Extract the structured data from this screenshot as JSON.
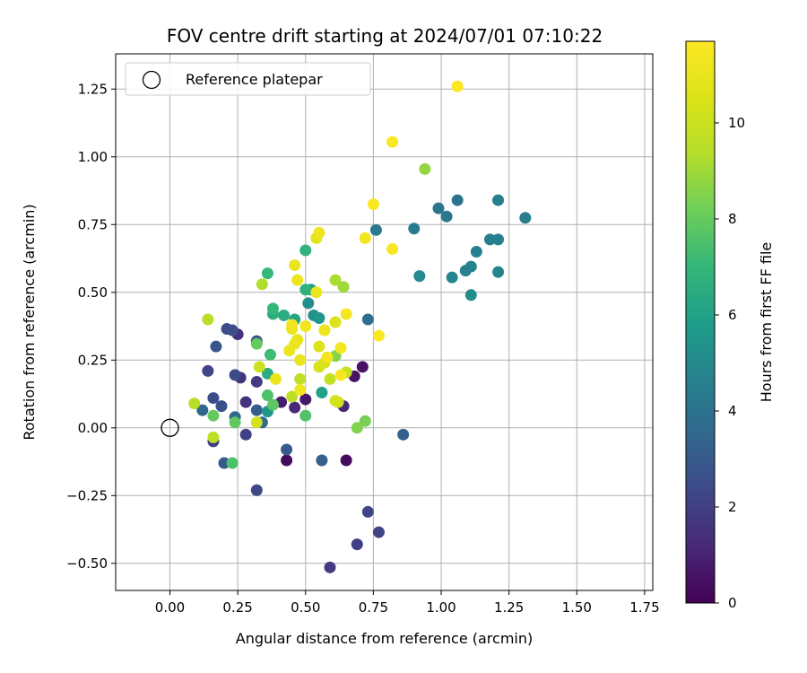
{
  "chart_data": {
    "type": "scatter",
    "title": "FOV centre drift starting at 2024/07/01 07:10:22",
    "xlabel": "Angular distance from reference (arcmin)",
    "ylabel": "Rotation from reference (arcmin)",
    "xlim": [
      -0.2,
      1.78
    ],
    "ylim": [
      -0.6,
      1.38
    ],
    "xticks": [
      0.0,
      0.25,
      0.5,
      0.75,
      1.0,
      1.25,
      1.5,
      1.75
    ],
    "xtick_labels": [
      "0.00",
      "0.25",
      "0.50",
      "0.75",
      "1.00",
      "1.25",
      "1.50",
      "1.75"
    ],
    "yticks": [
      -0.5,
      -0.25,
      0.0,
      0.25,
      0.5,
      0.75,
      1.0,
      1.25
    ],
    "ytick_labels": [
      "−0.50",
      "−0.25",
      "0.00",
      "0.25",
      "0.50",
      "0.75",
      "1.00",
      "1.25"
    ],
    "grid": true,
    "legend": {
      "placement": "top-left",
      "entries": [
        "Reference platepar"
      ]
    },
    "reference_point": {
      "x": 0.0,
      "y": 0.0
    },
    "colorbar": {
      "label": "Hours from first FF file",
      "colormap": "viridis",
      "range": [
        0,
        11.7
      ],
      "ticks": [
        0,
        2,
        4,
        6,
        8,
        10
      ],
      "tick_labels": [
        "0",
        "2",
        "4",
        "6",
        "8",
        "10"
      ]
    },
    "points": [
      {
        "x": 0.43,
        "y": -0.12,
        "h": 0.3
      },
      {
        "x": 0.65,
        "y": -0.12,
        "h": 0.3
      },
      {
        "x": 0.71,
        "y": 0.225,
        "h": 0.5
      },
      {
        "x": 0.68,
        "y": 0.19,
        "h": 0.6
      },
      {
        "x": 0.5,
        "y": 0.105,
        "h": 0.7
      },
      {
        "x": 0.41,
        "y": 0.095,
        "h": 0.8
      },
      {
        "x": 0.46,
        "y": 0.075,
        "h": 1.2
      },
      {
        "x": 0.64,
        "y": 0.08,
        "h": 1.2
      },
      {
        "x": 0.25,
        "y": 0.345,
        "h": 1.5
      },
      {
        "x": 0.26,
        "y": 0.185,
        "h": 1.6
      },
      {
        "x": 0.28,
        "y": 0.095,
        "h": 1.5
      },
      {
        "x": 0.32,
        "y": 0.17,
        "h": 1.8
      },
      {
        "x": 0.59,
        "y": -0.515,
        "h": 1.8
      },
      {
        "x": 0.69,
        "y": -0.43,
        "h": 2.0
      },
      {
        "x": 0.77,
        "y": -0.385,
        "h": 2.2
      },
      {
        "x": 0.73,
        "y": -0.31,
        "h": 2.2
      },
      {
        "x": 0.32,
        "y": -0.23,
        "h": 2.3
      },
      {
        "x": 0.16,
        "y": -0.05,
        "h": 2.0
      },
      {
        "x": 0.28,
        "y": -0.025,
        "h": 2.1
      },
      {
        "x": 0.14,
        "y": 0.21,
        "h": 2.2
      },
      {
        "x": 0.16,
        "y": 0.11,
        "h": 2.4
      },
      {
        "x": 0.19,
        "y": 0.08,
        "h": 2.6
      },
      {
        "x": 0.24,
        "y": 0.195,
        "h": 2.4
      },
      {
        "x": 0.21,
        "y": 0.365,
        "h": 2.5
      },
      {
        "x": 0.23,
        "y": 0.36,
        "h": 2.6
      },
      {
        "x": 0.17,
        "y": 0.3,
        "h": 2.8
      },
      {
        "x": 0.32,
        "y": 0.32,
        "h": 2.7
      },
      {
        "x": 0.2,
        "y": -0.13,
        "h": 3.0
      },
      {
        "x": 0.43,
        "y": -0.08,
        "h": 3.0
      },
      {
        "x": 0.56,
        "y": -0.12,
        "h": 3.2
      },
      {
        "x": 0.86,
        "y": -0.025,
        "h": 3.3
      },
      {
        "x": 0.32,
        "y": 0.065,
        "h": 3.1
      },
      {
        "x": 0.12,
        "y": 0.065,
        "h": 3.4
      },
      {
        "x": 0.24,
        "y": 0.04,
        "h": 3.5
      },
      {
        "x": 0.34,
        "y": 0.02,
        "h": 3.6
      },
      {
        "x": 0.73,
        "y": 0.4,
        "h": 3.8
      },
      {
        "x": 1.06,
        "y": 0.84,
        "h": 4.0
      },
      {
        "x": 0.99,
        "y": 0.81,
        "h": 4.1
      },
      {
        "x": 1.02,
        "y": 0.78,
        "h": 4.2
      },
      {
        "x": 0.76,
        "y": 0.73,
        "h": 4.3
      },
      {
        "x": 0.9,
        "y": 0.735,
        "h": 4.4
      },
      {
        "x": 1.21,
        "y": 0.84,
        "h": 4.5
      },
      {
        "x": 1.31,
        "y": 0.775,
        "h": 4.5
      },
      {
        "x": 1.18,
        "y": 0.695,
        "h": 4.5
      },
      {
        "x": 1.21,
        "y": 0.695,
        "h": 4.6
      },
      {
        "x": 1.13,
        "y": 0.65,
        "h": 4.6
      },
      {
        "x": 1.11,
        "y": 0.595,
        "h": 4.7
      },
      {
        "x": 1.09,
        "y": 0.58,
        "h": 4.7
      },
      {
        "x": 1.21,
        "y": 0.575,
        "h": 4.8
      },
      {
        "x": 1.04,
        "y": 0.555,
        "h": 4.9
      },
      {
        "x": 0.92,
        "y": 0.56,
        "h": 5.0
      },
      {
        "x": 1.11,
        "y": 0.49,
        "h": 5.1
      },
      {
        "x": 0.51,
        "y": 0.46,
        "h": 5.2
      },
      {
        "x": 0.53,
        "y": 0.415,
        "h": 5.3
      },
      {
        "x": 0.55,
        "y": 0.405,
        "h": 5.5
      },
      {
        "x": 0.36,
        "y": 0.06,
        "h": 5.5
      },
      {
        "x": 0.52,
        "y": 0.51,
        "h": 5.8
      },
      {
        "x": 0.56,
        "y": 0.13,
        "h": 6.0
      },
      {
        "x": 0.46,
        "y": 0.4,
        "h": 6.2
      },
      {
        "x": 0.42,
        "y": 0.415,
        "h": 6.5
      },
      {
        "x": 0.38,
        "y": 0.42,
        "h": 6.6
      },
      {
        "x": 0.36,
        "y": 0.2,
        "h": 6.5
      },
      {
        "x": 0.5,
        "y": 0.51,
        "h": 6.8
      },
      {
        "x": 0.5,
        "y": 0.655,
        "h": 6.8
      },
      {
        "x": 0.36,
        "y": 0.57,
        "h": 7.0
      },
      {
        "x": 0.38,
        "y": 0.44,
        "h": 7.0
      },
      {
        "x": 0.37,
        "y": 0.27,
        "h": 7.2
      },
      {
        "x": 0.36,
        "y": 0.12,
        "h": 7.5
      },
      {
        "x": 0.23,
        "y": -0.13,
        "h": 7.5
      },
      {
        "x": 0.5,
        "y": 0.045,
        "h": 7.6
      },
      {
        "x": 0.38,
        "y": 0.085,
        "h": 7.8
      },
      {
        "x": 0.24,
        "y": 0.02,
        "h": 7.9
      },
      {
        "x": 0.16,
        "y": 0.045,
        "h": 8.0
      },
      {
        "x": 0.32,
        "y": 0.31,
        "h": 8.0
      },
      {
        "x": 0.72,
        "y": 0.025,
        "h": 8.3
      },
      {
        "x": 0.69,
        "y": 0.0,
        "h": 8.5
      },
      {
        "x": 0.94,
        "y": 0.955,
        "h": 8.8
      },
      {
        "x": 0.61,
        "y": 0.265,
        "h": 8.6
      },
      {
        "x": 0.64,
        "y": 0.52,
        "h": 9.0
      },
      {
        "x": 0.61,
        "y": 0.545,
        "h": 9.2
      },
      {
        "x": 0.34,
        "y": 0.53,
        "h": 9.3
      },
      {
        "x": 0.09,
        "y": 0.09,
        "h": 9.4
      },
      {
        "x": 0.14,
        "y": 0.4,
        "h": 9.5
      },
      {
        "x": 0.16,
        "y": -0.035,
        "h": 9.6
      },
      {
        "x": 0.45,
        "y": 0.115,
        "h": 9.6
      },
      {
        "x": 0.48,
        "y": 0.18,
        "h": 9.7
      },
      {
        "x": 0.65,
        "y": 0.205,
        "h": 9.8
      },
      {
        "x": 0.59,
        "y": 0.18,
        "h": 9.8
      },
      {
        "x": 0.62,
        "y": 0.095,
        "h": 10.0
      },
      {
        "x": 0.61,
        "y": 0.1,
        "h": 10.2
      },
      {
        "x": 0.33,
        "y": 0.225,
        "h": 10.0
      },
      {
        "x": 0.32,
        "y": 0.02,
        "h": 10.2
      },
      {
        "x": 0.55,
        "y": 0.225,
        "h": 10.3
      },
      {
        "x": 0.57,
        "y": 0.24,
        "h": 10.4
      },
      {
        "x": 0.55,
        "y": 0.3,
        "h": 10.5
      },
      {
        "x": 0.61,
        "y": 0.39,
        "h": 10.5
      },
      {
        "x": 0.57,
        "y": 0.36,
        "h": 10.7
      },
      {
        "x": 0.54,
        "y": 0.7,
        "h": 10.8
      },
      {
        "x": 0.46,
        "y": 0.6,
        "h": 11.0
      },
      {
        "x": 0.47,
        "y": 0.545,
        "h": 11.0
      },
      {
        "x": 0.54,
        "y": 0.5,
        "h": 11.0
      },
      {
        "x": 0.55,
        "y": 0.72,
        "h": 11.2
      },
      {
        "x": 0.72,
        "y": 0.7,
        "h": 11.3
      },
      {
        "x": 0.75,
        "y": 0.825,
        "h": 11.6
      },
      {
        "x": 0.82,
        "y": 1.055,
        "h": 11.6
      },
      {
        "x": 1.06,
        "y": 1.26,
        "h": 11.7
      },
      {
        "x": 0.82,
        "y": 0.66,
        "h": 11.5
      },
      {
        "x": 0.77,
        "y": 0.34,
        "h": 11.6
      },
      {
        "x": 0.65,
        "y": 0.42,
        "h": 11.4
      },
      {
        "x": 0.5,
        "y": 0.375,
        "h": 11.3
      },
      {
        "x": 0.45,
        "y": 0.38,
        "h": 11.3
      },
      {
        "x": 0.45,
        "y": 0.365,
        "h": 11.0
      },
      {
        "x": 0.47,
        "y": 0.325,
        "h": 10.9
      },
      {
        "x": 0.46,
        "y": 0.31,
        "h": 11.0
      },
      {
        "x": 0.44,
        "y": 0.285,
        "h": 11.1
      },
      {
        "x": 0.48,
        "y": 0.25,
        "h": 11.0
      },
      {
        "x": 0.57,
        "y": 0.36,
        "h": 11.2
      },
      {
        "x": 0.58,
        "y": 0.26,
        "h": 11.3
      },
      {
        "x": 0.63,
        "y": 0.295,
        "h": 11.4
      },
      {
        "x": 0.63,
        "y": 0.195,
        "h": 11.5
      },
      {
        "x": 0.48,
        "y": 0.14,
        "h": 11.3
      },
      {
        "x": 0.39,
        "y": 0.18,
        "h": 11.0
      }
    ]
  }
}
